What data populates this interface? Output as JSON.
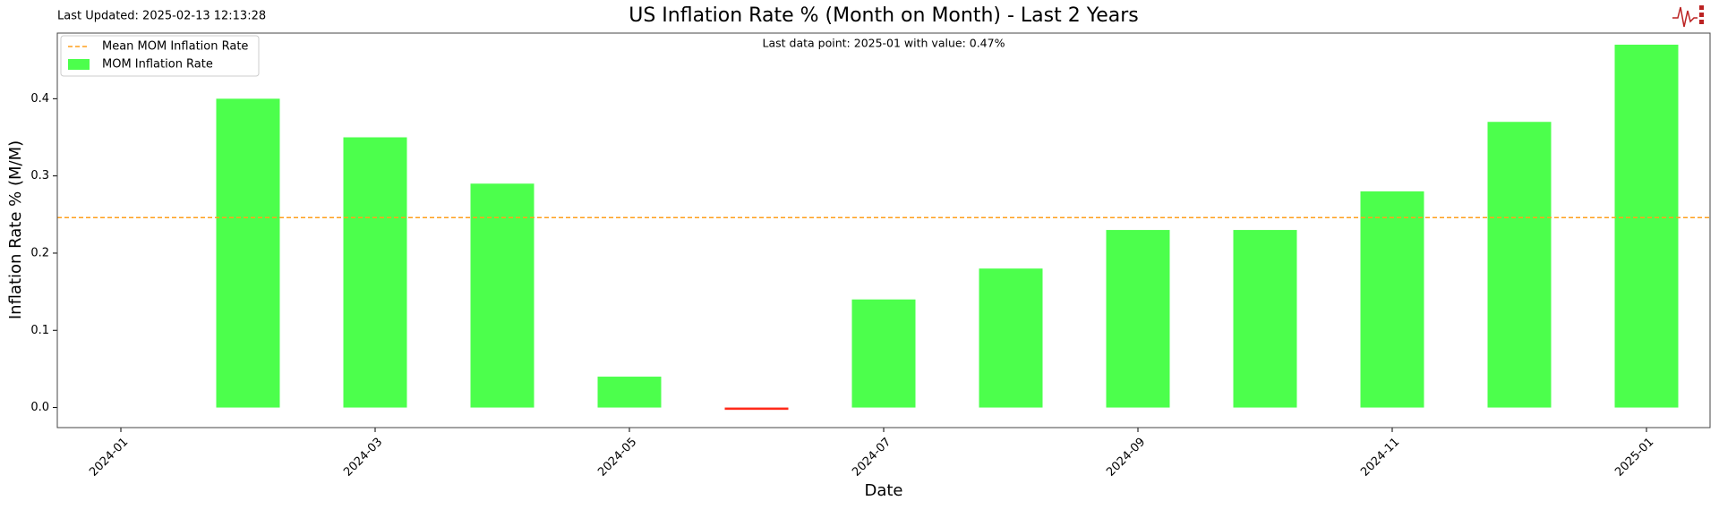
{
  "chart_data": {
    "type": "bar",
    "title": "US Inflation Rate % (Month on Month) - Last 2 Years",
    "updated": "Last Updated: 2025-02-13 12:13:28",
    "annotation": "Last data point: 2025-01 with value: 0.47%",
    "x_label": "Date",
    "y_label": "Inflation Rate % (M/M)",
    "x": [
      "2024-02",
      "2024-03",
      "2024-04",
      "2024-05",
      "2024-06",
      "2024-07",
      "2024-08",
      "2024-09",
      "2024-10",
      "2024-11",
      "2024-12",
      "2025-01"
    ],
    "series": [
      {
        "name": "MOM Inflation Rate",
        "color": "#4cff4c",
        "negative_color": "#ff2a1a",
        "values": [
          0.4,
          0.35,
          0.29,
          0.04,
          -0.003,
          0.14,
          0.18,
          0.23,
          0.23,
          0.28,
          0.37,
          0.47
        ]
      }
    ],
    "mean_line": {
      "name": "Mean MOM Inflation Rate",
      "color": "#ff9f1c",
      "value": 0.246
    },
    "xticks": [
      "2024-01",
      "2024-03",
      "2024-05",
      "2024-07",
      "2024-09",
      "2024-11",
      "2025-01"
    ],
    "ylim": [
      -0.026,
      0.485
    ],
    "yticks": [
      {
        "value": 0,
        "label": "0.0"
      },
      0.1,
      0.2,
      0.3,
      0.4
    ],
    "legend": "upper left",
    "grid": false
  }
}
